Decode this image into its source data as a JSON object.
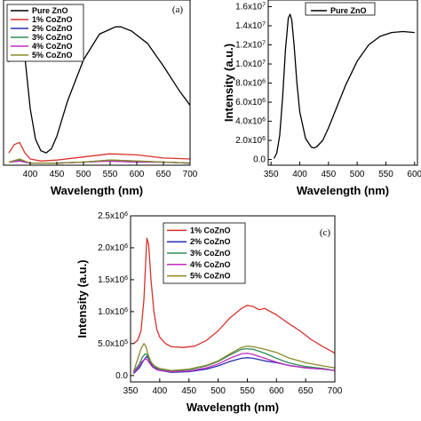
{
  "chart_data": [
    {
      "type": "line",
      "panel_label": "(a)",
      "xlabel": "Wavelength (nm)",
      "ylabel": "",
      "xlim": [
        350,
        700
      ],
      "xticks": [
        "400",
        "450",
        "500",
        "550",
        "600",
        "650",
        "700"
      ],
      "yticks": [],
      "legend_position": "top-left",
      "series": [
        {
          "name": "Pure ZnO",
          "color": "#000000",
          "x": [
            360,
            370,
            380,
            385,
            390,
            400,
            410,
            420,
            430,
            440,
            450,
            470,
            500,
            530,
            560,
            570,
            590,
            620,
            650,
            680,
            700
          ],
          "y": [
            1.0,
            1.35,
            1.5,
            1.4,
            1.05,
            0.55,
            0.25,
            0.14,
            0.12,
            0.16,
            0.28,
            0.62,
            1.02,
            1.27,
            1.34,
            1.34,
            1.3,
            1.18,
            0.96,
            0.72,
            0.58
          ]
        },
        {
          "name": "1% CoZnO",
          "color": "#d6312b",
          "x": [
            360,
            370,
            380,
            390,
            400,
            420,
            450,
            500,
            550,
            600,
            650,
            700
          ],
          "y": [
            0.12,
            0.2,
            0.22,
            0.12,
            0.06,
            0.04,
            0.05,
            0.08,
            0.11,
            0.1,
            0.07,
            0.06
          ]
        },
        {
          "name": "2% CoZnO",
          "color": "#2b2fb0",
          "x": [
            360,
            380,
            400,
            450,
            500,
            550,
            600,
            650,
            700
          ],
          "y": [
            0.03,
            0.04,
            0.02,
            0.02,
            0.03,
            0.04,
            0.03,
            0.03,
            0.02
          ]
        },
        {
          "name": "3% CoZnO",
          "color": "#2e8b57",
          "x": [
            360,
            380,
            400,
            450,
            500,
            550,
            600,
            650,
            700
          ],
          "y": [
            0.03,
            0.05,
            0.02,
            0.02,
            0.03,
            0.05,
            0.04,
            0.03,
            0.02
          ]
        },
        {
          "name": "4% CoZnO",
          "color": "#c02bc0",
          "x": [
            360,
            380,
            400,
            450,
            500,
            550,
            600,
            650,
            700
          ],
          "y": [
            0.03,
            0.04,
            0.02,
            0.02,
            0.03,
            0.04,
            0.03,
            0.03,
            0.02
          ]
        },
        {
          "name": "5% CoZnO",
          "color": "#8a8a2a",
          "x": [
            360,
            380,
            400,
            450,
            500,
            550,
            600,
            650,
            700
          ],
          "y": [
            0.03,
            0.06,
            0.02,
            0.02,
            0.03,
            0.05,
            0.04,
            0.03,
            0.02
          ]
        }
      ]
    },
    {
      "type": "line",
      "panel_label": "",
      "xlabel": "Wavelength (nm)",
      "ylabel": "Intensity (a.u.)",
      "xlim": [
        350,
        700
      ],
      "ylim": [
        0,
        16000000
      ],
      "xticks": [
        "350",
        "400",
        "450",
        "500",
        "550",
        "600"
      ],
      "yticks": [
        "0.0",
        "2.0x10^6",
        "4.0x10^6",
        "6.0x10^6",
        "8.0x10^6",
        "1.0x10^7",
        "1.2x10^7",
        "1.4x10^7",
        "1.6x10^7"
      ],
      "legend_position": "top-left",
      "series": [
        {
          "name": "Pure ZnO",
          "color": "#000000",
          "x": [
            355,
            360,
            365,
            370,
            375,
            380,
            383,
            386,
            390,
            395,
            400,
            410,
            420,
            425,
            430,
            440,
            450,
            460,
            480,
            500,
            520,
            540,
            560,
            580,
            600
          ],
          "y": [
            100000,
            700000,
            2500000,
            6500000,
            11500000,
            14800000,
            15200000,
            14600000,
            12000000,
            8000000,
            5000000,
            2200000,
            1300000,
            1200000,
            1350000,
            2000000,
            3300000,
            4800000,
            7800000,
            10300000,
            12000000,
            12900000,
            13300000,
            13400000,
            13300000
          ]
        }
      ]
    },
    {
      "type": "line",
      "panel_label": "(c)",
      "xlabel": "Wavelength (nm)",
      "ylabel": "Intensity (a.u.)",
      "xlim": [
        350,
        700
      ],
      "ylim": [
        -100000,
        2500000
      ],
      "xticks": [
        "350",
        "400",
        "450",
        "500",
        "550",
        "600",
        "650",
        "700"
      ],
      "yticks": [
        "0.0",
        "5.0x10^5",
        "1.0x10^6",
        "1.5x10^6",
        "2.0x10^6",
        "2.5x10^6"
      ],
      "legend_position": "top-right",
      "series": [
        {
          "name": "1% CoZnO",
          "color": "#d6312b",
          "x": [
            355,
            362,
            368,
            373,
            376,
            378,
            381,
            385,
            390,
            395,
            400,
            410,
            420,
            440,
            460,
            480,
            500,
            520,
            540,
            550,
            560,
            570,
            580,
            600,
            620,
            640,
            660,
            680,
            700
          ],
          "y": [
            500000,
            550000,
            700000,
            1200000,
            1800000,
            2150000,
            2050000,
            1500000,
            1000000,
            720000,
            600000,
            500000,
            450000,
            440000,
            460000,
            550000,
            700000,
            900000,
            1050000,
            1100000,
            1080000,
            1030000,
            1050000,
            950000,
            820000,
            700000,
            560000,
            450000,
            350000
          ]
        },
        {
          "name": "2% CoZnO",
          "color": "#2b2fb0",
          "x": [
            355,
            365,
            370,
            375,
            378,
            382,
            388,
            395,
            400,
            420,
            450,
            480,
            500,
            520,
            540,
            550,
            560,
            580,
            600,
            620,
            650,
            680,
            700
          ],
          "y": [
            30000,
            120000,
            200000,
            270000,
            300000,
            240000,
            140000,
            100000,
            80000,
            50000,
            60000,
            100000,
            150000,
            220000,
            270000,
            280000,
            270000,
            230000,
            200000,
            160000,
            120000,
            100000,
            80000
          ]
        },
        {
          "name": "3% CoZnO",
          "color": "#2e8b57",
          "x": [
            355,
            365,
            370,
            375,
            378,
            382,
            388,
            395,
            400,
            420,
            450,
            480,
            500,
            520,
            540,
            550,
            560,
            580,
            600,
            620,
            650,
            680,
            700
          ],
          "y": [
            60000,
            180000,
            280000,
            340000,
            330000,
            260000,
            170000,
            120000,
            100000,
            70000,
            90000,
            150000,
            220000,
            320000,
            410000,
            420000,
            410000,
            350000,
            270000,
            200000,
            140000,
            110000,
            80000
          ]
        },
        {
          "name": "4% CoZnO",
          "color": "#c02bc0",
          "x": [
            355,
            365,
            370,
            375,
            378,
            382,
            388,
            395,
            400,
            420,
            450,
            480,
            500,
            520,
            540,
            550,
            560,
            580,
            600,
            620,
            650,
            680,
            700
          ],
          "y": [
            40000,
            150000,
            220000,
            260000,
            250000,
            200000,
            130000,
            90000,
            80000,
            60000,
            70000,
            120000,
            180000,
            270000,
            340000,
            350000,
            330000,
            270000,
            210000,
            160000,
            120000,
            100000,
            80000
          ]
        },
        {
          "name": "5% CoZnO",
          "color": "#8a8a2a",
          "x": [
            355,
            362,
            368,
            373,
            376,
            380,
            385,
            390,
            395,
            400,
            420,
            450,
            480,
            500,
            520,
            540,
            550,
            560,
            580,
            600,
            620,
            650,
            680,
            700
          ],
          "y": [
            60000,
            250000,
            420000,
            500000,
            460000,
            330000,
            210000,
            160000,
            130000,
            110000,
            80000,
            100000,
            160000,
            230000,
            340000,
            440000,
            460000,
            450000,
            410000,
            360000,
            280000,
            200000,
            150000,
            120000
          ]
        }
      ]
    }
  ]
}
